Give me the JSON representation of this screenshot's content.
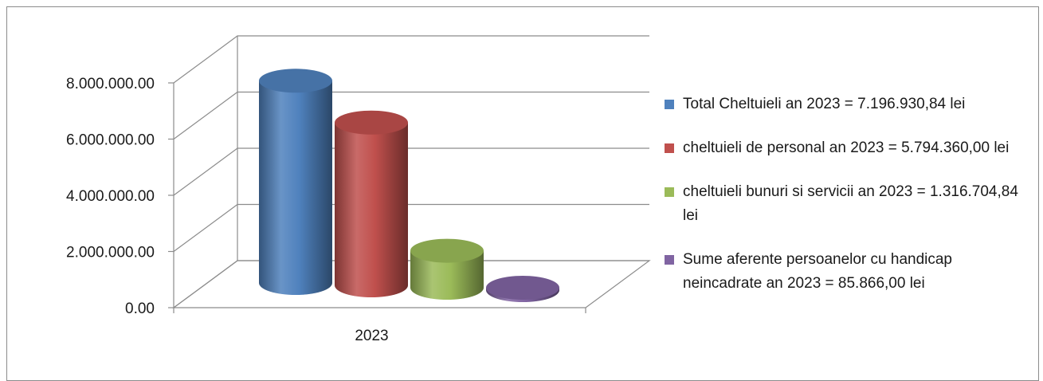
{
  "chart_data": {
    "type": "bar",
    "style": "3d-cylinder",
    "categories": [
      "2023"
    ],
    "ylim": [
      0,
      8000000
    ],
    "yticks": [
      0,
      2000000,
      4000000,
      6000000,
      8000000
    ],
    "ytick_labels": [
      "0.00",
      "2.000.000.00",
      "4.000.000.00",
      "6.000.000.00",
      "8.000.000.00"
    ],
    "grid": true,
    "legend_position": "right",
    "series": [
      {
        "name": "Total Cheltuieli an 2023 = 7.196.930,84 lei",
        "values": [
          7196930.84
        ],
        "color": "#4f81bd"
      },
      {
        "name": "cheltuieli de personal an 2023 = 5.794.360,00 lei",
        "values": [
          5794360.0
        ],
        "color": "#c0504d"
      },
      {
        "name": "cheltuieli bunuri si servicii an 2023 = 1.316.704,84 lei",
        "values": [
          1316704.84
        ],
        "color": "#9bbb59"
      },
      {
        "name": "Sume aferente persoanelor cu handicap neincadrate an 2023 = 85.866,00 lei",
        "values": [
          85866.0
        ],
        "color": "#8064a2"
      }
    ]
  }
}
